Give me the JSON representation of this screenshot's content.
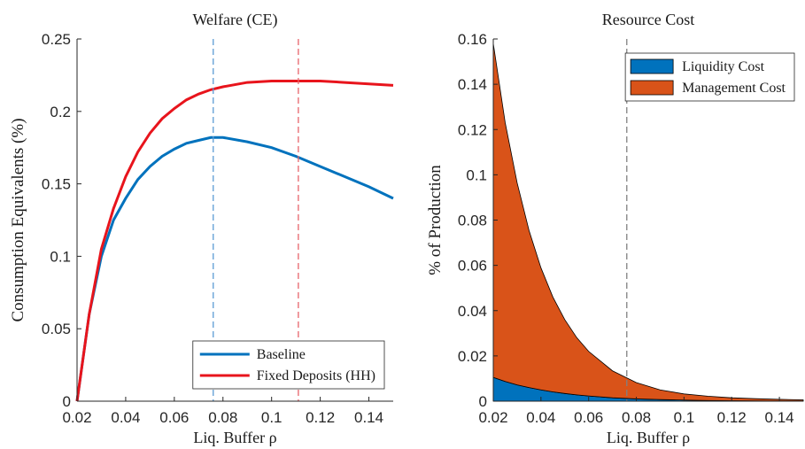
{
  "chart_data": [
    {
      "type": "line",
      "title": "Welfare (CE)",
      "xlabel": "Liq. Buffer ρ",
      "ylabel": "Consumption Equivalents (%)",
      "x": [
        0.02,
        0.025,
        0.03,
        0.035,
        0.04,
        0.045,
        0.05,
        0.055,
        0.06,
        0.065,
        0.07,
        0.075,
        0.08,
        0.09,
        0.1,
        0.11,
        0.12,
        0.13,
        0.14,
        0.15
      ],
      "series": [
        {
          "name": "Baseline",
          "color": "#0072bd",
          "values": [
            0,
            0.06,
            0.1,
            0.125,
            0.14,
            0.153,
            0.162,
            0.169,
            0.174,
            0.178,
            0.18,
            0.182,
            0.182,
            0.179,
            0.175,
            0.169,
            0.162,
            0.155,
            0.148,
            0.14
          ]
        },
        {
          "name": "Fixed Deposits (HH)",
          "color": "#e8141c",
          "values": [
            0,
            0.06,
            0.105,
            0.133,
            0.155,
            0.172,
            0.185,
            0.195,
            0.202,
            0.208,
            0.212,
            0.215,
            0.217,
            0.22,
            0.221,
            0.221,
            0.221,
            0.22,
            0.219,
            0.218
          ]
        }
      ],
      "vlines": [
        {
          "x": 0.076,
          "color": "#5b9bd5"
        },
        {
          "x": 0.111,
          "color": "#e8646a"
        }
      ],
      "xlim": [
        0.02,
        0.15
      ],
      "xticks": [
        0.02,
        0.04,
        0.06,
        0.08,
        0.1,
        0.12,
        0.14
      ],
      "ylim": [
        0,
        0.25
      ],
      "yticks": [
        0,
        0.05,
        0.1,
        0.15,
        0.2,
        0.25
      ],
      "legend": "lower right"
    },
    {
      "type": "area",
      "title": "Resource Cost",
      "xlabel": "Liq. Buffer ρ",
      "ylabel": "% of Production",
      "x": [
        0.02,
        0.025,
        0.03,
        0.035,
        0.04,
        0.045,
        0.05,
        0.055,
        0.06,
        0.07,
        0.08,
        0.09,
        0.1,
        0.11,
        0.12,
        0.13,
        0.14,
        0.15
      ],
      "series": [
        {
          "name": "Liquidity Cost",
          "color": "#0072bd",
          "values": [
            0.0105,
            0.0087,
            0.0072,
            0.006,
            0.005,
            0.0041,
            0.0034,
            0.0028,
            0.0023,
            0.0015,
            0.001,
            0.0007,
            0.0005,
            0.0003,
            0.0002,
            0.00015,
            0.0001,
            0.0001
          ]
        },
        {
          "name": "Management Cost",
          "color": "#d95319",
          "values": [
            0.1475,
            0.1143,
            0.0893,
            0.0694,
            0.0539,
            0.0419,
            0.0326,
            0.0253,
            0.0197,
            0.0119,
            0.0072,
            0.0043,
            0.0027,
            0.0019,
            0.0013,
            0.00095,
            0.0007,
            0.0005
          ]
        }
      ],
      "vlines": [
        {
          "x": 0.076,
          "color": "#808080"
        }
      ],
      "xlim": [
        0.02,
        0.15
      ],
      "xticks": [
        0.02,
        0.04,
        0.06,
        0.08,
        0.1,
        0.12,
        0.14
      ],
      "ylim": [
        0,
        0.16
      ],
      "yticks": [
        0,
        0.02,
        0.04,
        0.06,
        0.08,
        0.1,
        0.12,
        0.14,
        0.16
      ],
      "legend": "upper right"
    }
  ]
}
